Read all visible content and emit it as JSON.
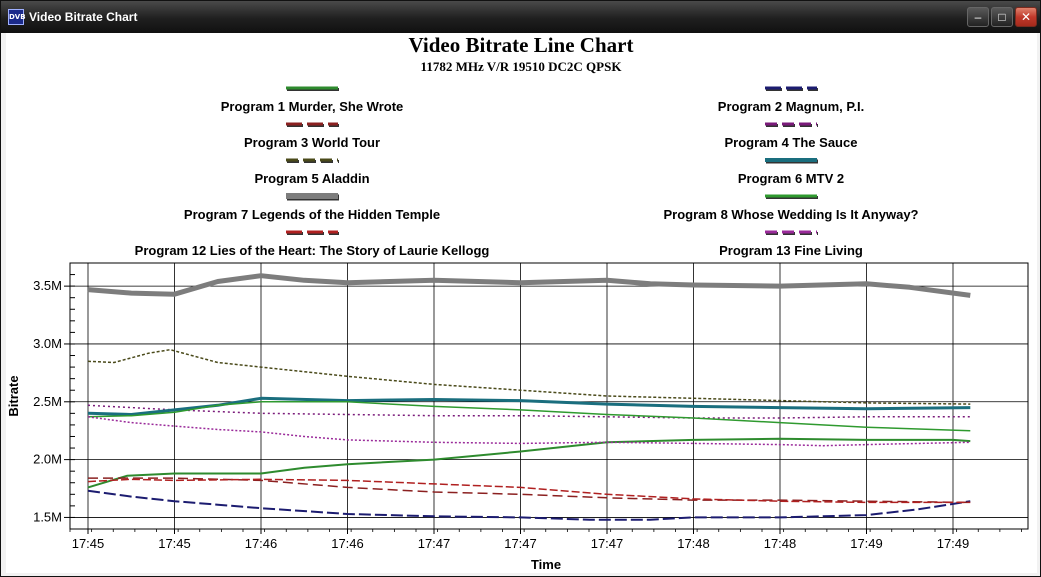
{
  "window": {
    "title": "Video Bitrate Chart",
    "icon_text": "DVB",
    "buttons": [
      "minimize",
      "maximize",
      "close"
    ]
  },
  "chart_data": {
    "type": "line",
    "title": "Video Bitrate Line Chart",
    "subtitle": "11782 MHz V/R 19510 DC2C QPSK",
    "xlabel": "Time",
    "ylabel": "Bitrate",
    "x": [
      "17:45",
      "17:45",
      "17:46",
      "17:46",
      "17:47",
      "17:47",
      "17:47",
      "17:48",
      "17:48",
      "17:49",
      "17:49"
    ],
    "ylim": [
      1400000,
      3700000
    ],
    "yticks": [
      {
        "value": 1500000,
        "label": "1.5M"
      },
      {
        "value": 2000000,
        "label": "2.0M"
      },
      {
        "value": 2500000,
        "label": "2.5M"
      },
      {
        "value": 3000000,
        "label": "3.0M"
      },
      {
        "value": 3500000,
        "label": "3.5M"
      }
    ],
    "grid": true,
    "legend_position": "top",
    "series": [
      {
        "name": "Program 1 Murder, She Wrote",
        "color": "#2e8b2e",
        "dash": "solid",
        "width": 2,
        "points": [
          [
            0,
            1.76
          ],
          [
            0.45,
            1.86
          ],
          [
            1,
            1.88
          ],
          [
            1.5,
            1.88
          ],
          [
            2,
            1.88
          ],
          [
            2.5,
            1.93
          ],
          [
            3,
            1.96
          ],
          [
            4,
            2.0
          ],
          [
            5,
            2.07
          ],
          [
            6,
            2.15
          ],
          [
            7,
            2.17
          ],
          [
            8,
            2.18
          ],
          [
            9,
            2.17
          ],
          [
            10,
            2.17
          ],
          [
            10.2,
            2.16
          ]
        ]
      },
      {
        "name": "Program 2 Magnum, P.I.",
        "color": "#1c1c70",
        "dash": "12 4",
        "width": 2,
        "points": [
          [
            0,
            1.73
          ],
          [
            0.5,
            1.68
          ],
          [
            1,
            1.64
          ],
          [
            1.5,
            1.61
          ],
          [
            2,
            1.58
          ],
          [
            3,
            1.53
          ],
          [
            4,
            1.51
          ],
          [
            5,
            1.5
          ],
          [
            5.8,
            1.48
          ],
          [
            6.5,
            1.48
          ],
          [
            7,
            1.5
          ],
          [
            8,
            1.5
          ],
          [
            9,
            1.52
          ],
          [
            9.6,
            1.57
          ],
          [
            10.2,
            1.64
          ]
        ]
      },
      {
        "name": "Program 3 World Tour",
        "color": "#8b2020",
        "dash": "10 5",
        "width": 1.5,
        "points": [
          [
            0,
            1.84
          ],
          [
            1,
            1.84
          ],
          [
            2,
            1.82
          ],
          [
            3,
            1.76
          ],
          [
            4,
            1.72
          ],
          [
            5,
            1.7
          ],
          [
            6,
            1.67
          ],
          [
            7,
            1.65
          ],
          [
            8,
            1.65
          ],
          [
            9,
            1.64
          ],
          [
            10.2,
            1.63
          ]
        ]
      },
      {
        "name": "Program 4 The Sauce",
        "color": "#7a1a7a",
        "dash": "2 3",
        "width": 1.5,
        "points": [
          [
            0,
            2.47
          ],
          [
            0.5,
            2.45
          ],
          [
            1,
            2.43
          ],
          [
            2,
            2.4
          ],
          [
            3,
            2.39
          ],
          [
            4,
            2.38
          ],
          [
            5,
            2.38
          ],
          [
            6,
            2.37
          ],
          [
            7,
            2.36
          ],
          [
            8,
            2.36
          ],
          [
            9,
            2.37
          ],
          [
            10.2,
            2.37
          ]
        ]
      },
      {
        "name": "Program 5 Aladdin",
        "color": "#4a4a1a",
        "dash": "3 2",
        "width": 1.5,
        "points": [
          [
            0,
            2.85
          ],
          [
            0.3,
            2.84
          ],
          [
            0.7,
            2.92
          ],
          [
            0.95,
            2.95
          ],
          [
            1.5,
            2.84
          ],
          [
            2,
            2.8
          ],
          [
            3,
            2.72
          ],
          [
            4,
            2.65
          ],
          [
            5,
            2.6
          ],
          [
            6,
            2.55
          ],
          [
            7,
            2.53
          ],
          [
            8,
            2.51
          ],
          [
            9,
            2.49
          ],
          [
            10.2,
            2.48
          ]
        ]
      },
      {
        "name": "Program 6 MTV 2",
        "color": "#1a6e7e",
        "dash": "solid",
        "width": 3,
        "points": [
          [
            0,
            2.4
          ],
          [
            0.5,
            2.39
          ],
          [
            1,
            2.43
          ],
          [
            1.5,
            2.47
          ],
          [
            2,
            2.53
          ],
          [
            3,
            2.51
          ],
          [
            4,
            2.52
          ],
          [
            5,
            2.51
          ],
          [
            6,
            2.48
          ],
          [
            7,
            2.46
          ],
          [
            8,
            2.45
          ],
          [
            9,
            2.44
          ],
          [
            10.2,
            2.45
          ]
        ]
      },
      {
        "name": "Program 7 Legends of the Hidden Temple",
        "color": "#7d7d7d",
        "dash": "solid",
        "width": 5,
        "points": [
          [
            0,
            3.47
          ],
          [
            0.5,
            3.44
          ],
          [
            1,
            3.43
          ],
          [
            1.5,
            3.54
          ],
          [
            2,
            3.59
          ],
          [
            2.5,
            3.55
          ],
          [
            3,
            3.53
          ],
          [
            4,
            3.55
          ],
          [
            5,
            3.53
          ],
          [
            6,
            3.55
          ],
          [
            6.5,
            3.52
          ],
          [
            7,
            3.51
          ],
          [
            8,
            3.5
          ],
          [
            9,
            3.52
          ],
          [
            9.5,
            3.49
          ],
          [
            10.2,
            3.42
          ]
        ]
      },
      {
        "name": "Program 8 Whose Wedding Is It Anyway?",
        "color": "#2f9a2f",
        "dash": "solid",
        "width": 1.5,
        "points": [
          [
            0,
            2.37
          ],
          [
            0.5,
            2.38
          ],
          [
            1,
            2.41
          ],
          [
            1.5,
            2.47
          ],
          [
            2,
            2.5
          ],
          [
            3,
            2.5
          ],
          [
            4,
            2.46
          ],
          [
            5,
            2.43
          ],
          [
            6,
            2.39
          ],
          [
            7,
            2.36
          ],
          [
            8,
            2.32
          ],
          [
            9,
            2.28
          ],
          [
            10.2,
            2.25
          ]
        ]
      },
      {
        "name": "Program 12 Lies of the Heart: The Story of Laurie Kellogg",
        "color": "#b02020",
        "dash": "8 3",
        "width": 1.5,
        "points": [
          [
            0,
            1.81
          ],
          [
            0.5,
            1.83
          ],
          [
            1,
            1.82
          ],
          [
            2,
            1.83
          ],
          [
            3,
            1.82
          ],
          [
            4,
            1.79
          ],
          [
            5,
            1.76
          ],
          [
            6,
            1.7
          ],
          [
            7,
            1.66
          ],
          [
            8,
            1.64
          ],
          [
            9,
            1.63
          ],
          [
            10.2,
            1.63
          ]
        ]
      },
      {
        "name": "Program 13 Fine Living",
        "color": "#9a2a9a",
        "dash": "2 2",
        "width": 1.5,
        "points": [
          [
            0,
            2.37
          ],
          [
            0.5,
            2.32
          ],
          [
            1,
            2.29
          ],
          [
            1.5,
            2.26
          ],
          [
            2,
            2.24
          ],
          [
            2.5,
            2.2
          ],
          [
            3,
            2.17
          ],
          [
            4,
            2.15
          ],
          [
            5,
            2.14
          ],
          [
            6,
            2.15
          ],
          [
            7,
            2.14
          ],
          [
            8,
            2.13
          ],
          [
            8.5,
            2.12
          ],
          [
            9,
            2.13
          ],
          [
            10.2,
            2.15
          ]
        ]
      }
    ]
  }
}
